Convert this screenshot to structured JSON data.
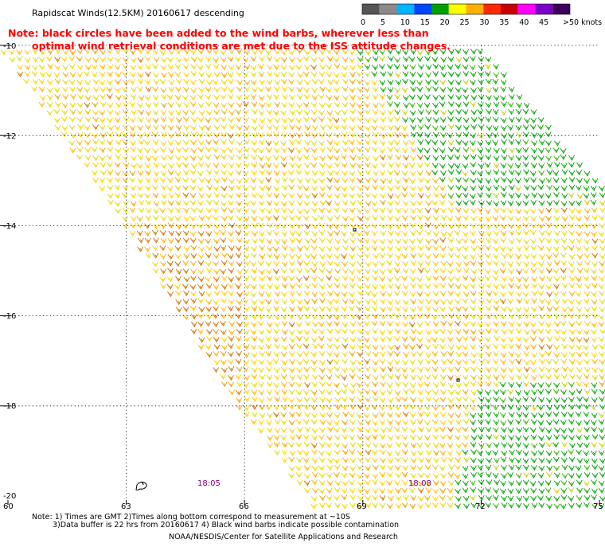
{
  "header": {
    "title": "Rapidscat Winds(12.5KM) 20160617 descending",
    "note_line1": "Note: black circles have been added to the wind barbs, wherever less than",
    "note_line2": "optimal wind retrieval conditions are met due to the ISS attitude changes."
  },
  "legend": {
    "labels": [
      "0",
      "5",
      "10",
      "15",
      "20",
      "25",
      "30",
      "35",
      "40",
      "45",
      ">50 knots"
    ],
    "colors": [
      "#555555",
      "#8a8a8a",
      "#00b4ff",
      "#0046ff",
      "#00a000",
      "#ffff00",
      "#ffb000",
      "#ff2800",
      "#c80000",
      "#ff00ff",
      "#7a00c8",
      "#3c005a"
    ]
  },
  "map": {
    "lat_labels": [
      "-10",
      "-12",
      "-14",
      "-16",
      "-18",
      "-20"
    ],
    "lon_labels": [
      "60",
      "63",
      "66",
      "69",
      "72",
      "75"
    ],
    "time_labels": [
      "18:05",
      "18:08"
    ],
    "lat_range": [
      -20,
      -10
    ],
    "lon_range": [
      60,
      75
    ]
  },
  "footer": {
    "note1": "Note: 1) Times are GMT 2)Times along bottom correspond to measurement at ~10S",
    "note2": "3)Data buffer is 22 hrs from 20160617 4) Black wind barbs indicate possible contamination",
    "credit": "NOAA/NESDIS/Center for Satellite Applications and Research"
  },
  "colors": {
    "note_text": "#ff0000",
    "time_label": "#800080",
    "grid": "#000000",
    "barb_palette": [
      "#e8d800",
      "#ffd000",
      "#ffb000",
      "#f0a000",
      "#d07000",
      "#00a000",
      "#3030c0",
      "#a000a0"
    ]
  }
}
